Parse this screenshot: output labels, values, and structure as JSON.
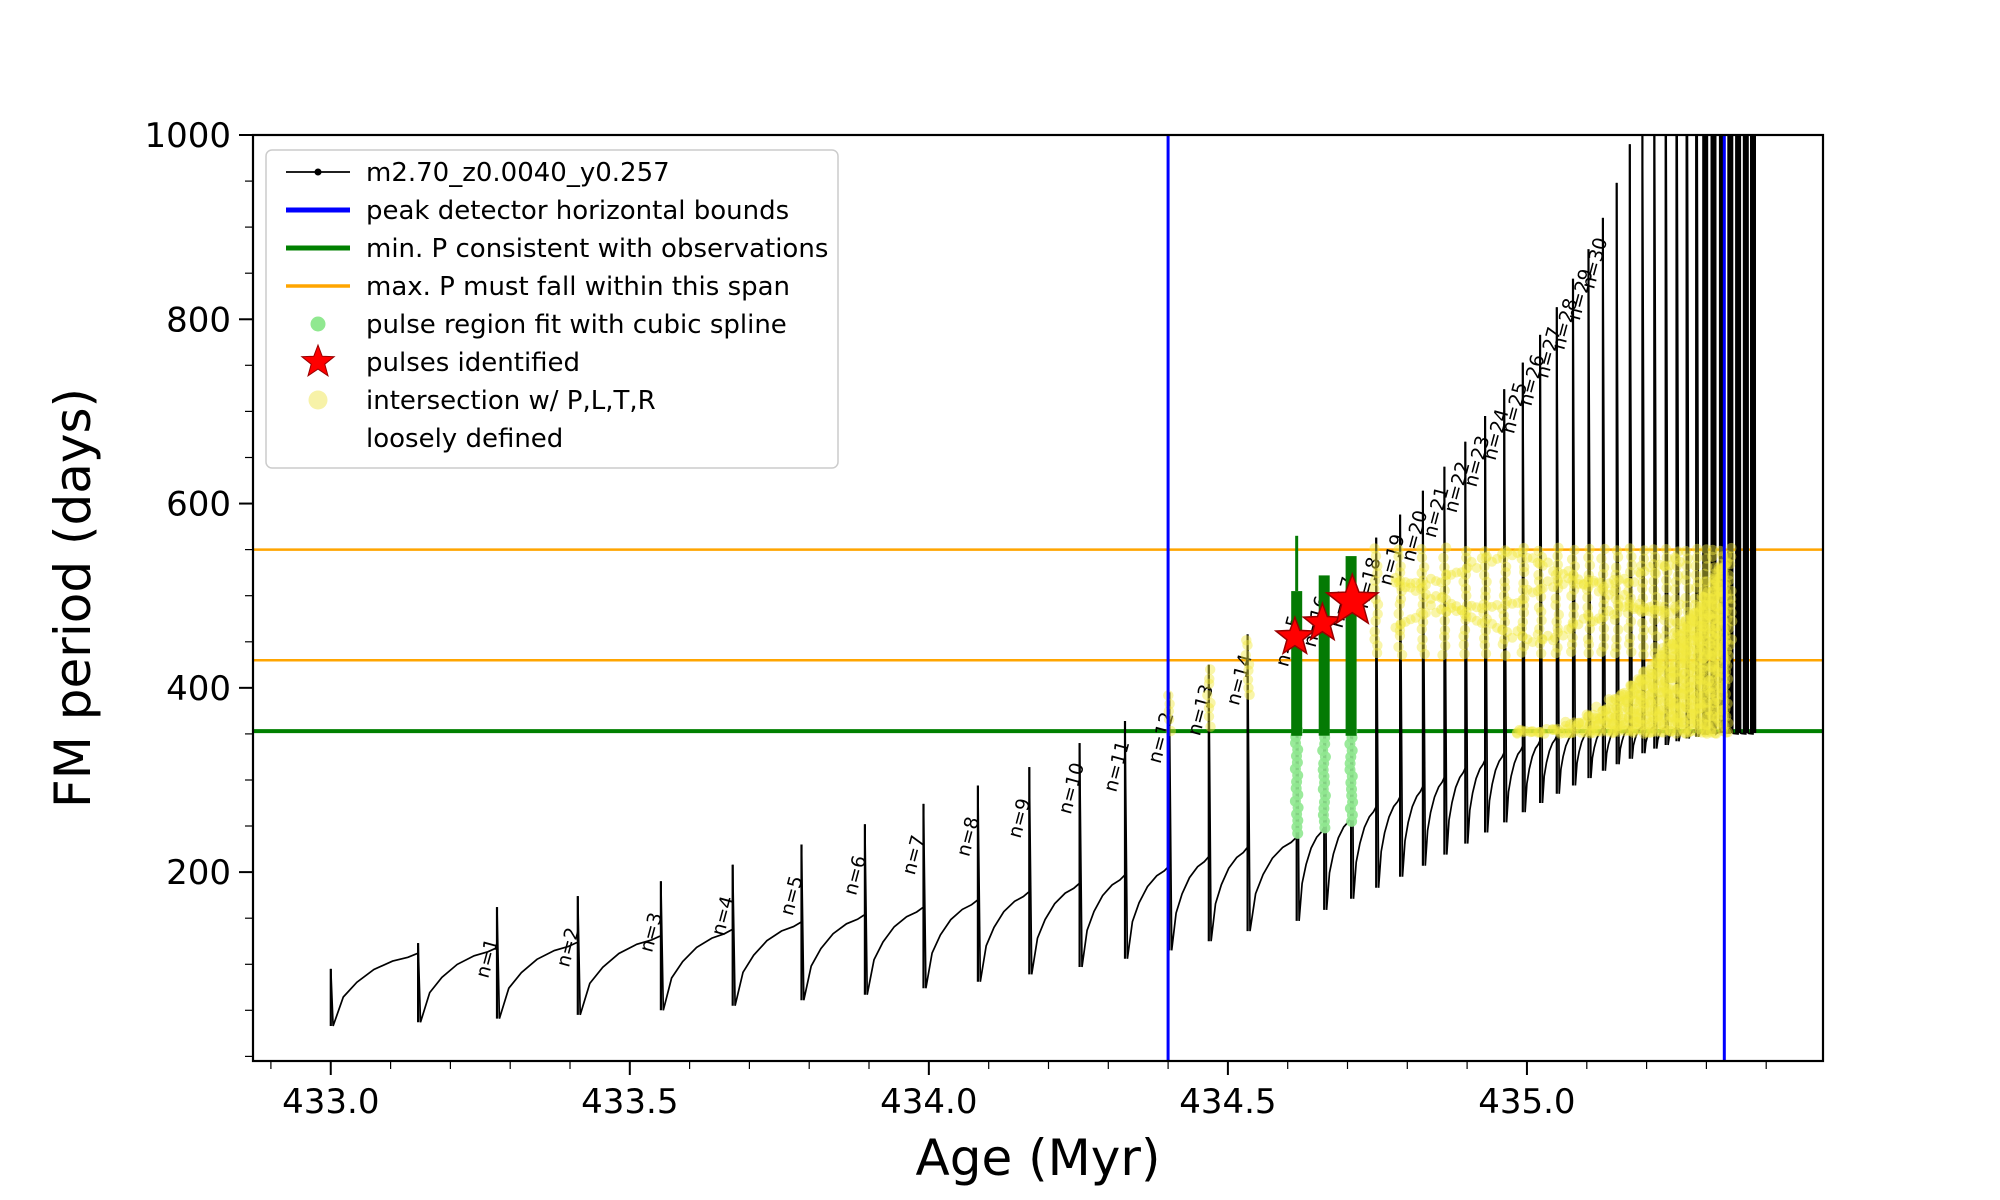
{
  "window": {
    "background": "#ffffff"
  },
  "figure": {
    "xlabel": "Age (Myr)",
    "ylabel": "FM period (days)",
    "x_range": [
      432.87,
      435.495
    ],
    "y_range": [
      -5,
      1000
    ],
    "x_ticks": [
      433.0,
      433.5,
      434.0,
      434.5,
      435.0
    ],
    "x_tick_labels": [
      "433.0",
      "433.5",
      "434.0",
      "434.5",
      "435.0"
    ],
    "y_ticks": [
      200,
      400,
      600,
      800,
      1000
    ],
    "y_tick_labels": [
      "200",
      "400",
      "600",
      "800",
      "1000"
    ],
    "x_minor_step": 0.1,
    "y_minor_step": 50
  },
  "legend": {
    "items": [
      {
        "label": "m2.70_z0.0040_y0.257"
      },
      {
        "label": "peak detector horizontal bounds"
      },
      {
        "label": "min. P consistent with observations"
      },
      {
        "label": "max. P must fall within this span"
      },
      {
        "label": "pulse region fit with cubic spline"
      },
      {
        "label": "pulses identified"
      },
      {
        "lines": [
          "intersection w/ P,L,T,R",
          "loosely defined"
        ]
      }
    ]
  },
  "chart_data": {
    "type": "line",
    "series_name": "m2.70_z0.0040_y0.257",
    "xlabel": "Age (Myr)",
    "ylabel": "FM period (days)",
    "xlim": [
      432.87,
      435.495
    ],
    "ylim": [
      -5,
      1000
    ],
    "peak_detector_bounds_x": [
      434.4,
      435.33
    ],
    "min_P_line_y": 353,
    "max_P_span_y": [
      430,
      550
    ],
    "colors": {
      "series": "#000000",
      "bounds": "#0000ff",
      "min_P": "#008000",
      "max_P": "#ffa500",
      "spline_dots": "#90e890",
      "spline_bar": "#047a04",
      "star": "#ff0000",
      "star_edge": "#990000",
      "intersection": "#f2e93e",
      "intersection_legend": "#f7f2a8"
    },
    "pulses": [
      {
        "n": null,
        "age": 433.0,
        "peak": 95,
        "base": 88,
        "dip": 33
      },
      {
        "n": null,
        "age": 433.146,
        "peak": 123,
        "base": 112,
        "dip": 37
      },
      {
        "n": 1,
        "age": 433.278,
        "peak": 162,
        "base": 118,
        "dip": 41
      },
      {
        "n": 2,
        "age": 433.413,
        "peak": 174,
        "base": 124,
        "dip": 45
      },
      {
        "n": 3,
        "age": 433.552,
        "peak": 190,
        "base": 131,
        "dip": 50
      },
      {
        "n": 4,
        "age": 433.672,
        "peak": 208,
        "base": 138,
        "dip": 55
      },
      {
        "n": 5,
        "age": 433.787,
        "peak": 230,
        "base": 146,
        "dip": 61
      },
      {
        "n": 6,
        "age": 433.893,
        "peak": 252,
        "base": 154,
        "dip": 67
      },
      {
        "n": 7,
        "age": 433.991,
        "peak": 274,
        "base": 162,
        "dip": 74
      },
      {
        "n": 8,
        "age": 434.082,
        "peak": 294,
        "base": 170,
        "dip": 81
      },
      {
        "n": 9,
        "age": 434.168,
        "peak": 314,
        "base": 179,
        "dip": 89
      },
      {
        "n": 10,
        "age": 434.252,
        "peak": 340,
        "base": 188,
        "dip": 97
      },
      {
        "n": 11,
        "age": 434.328,
        "peak": 364,
        "base": 197,
        "dip": 106
      },
      {
        "n": 12,
        "age": 434.402,
        "peak": 395,
        "base": 207,
        "dip": 115
      },
      {
        "n": 13,
        "age": 434.468,
        "peak": 425,
        "base": 217,
        "dip": 125
      },
      {
        "n": 14,
        "age": 434.533,
        "peak": 458,
        "base": 227,
        "dip": 136
      },
      {
        "n": 15,
        "age": 434.615,
        "peak": 500,
        "base": 238,
        "dip": 147
      },
      {
        "n": 16,
        "age": 434.661,
        "peak": 521,
        "base": 249,
        "dip": 159
      },
      {
        "n": 17,
        "age": 434.706,
        "peak": 542,
        "base": 260,
        "dip": 171
      },
      {
        "n": 18,
        "age": 434.748,
        "peak": 563,
        "base": 271,
        "dip": 183
      },
      {
        "n": 19,
        "age": 434.788,
        "peak": 588,
        "base": 282,
        "dip": 195
      },
      {
        "n": 20,
        "age": 434.826,
        "peak": 614,
        "base": 293,
        "dip": 207
      },
      {
        "n": 21,
        "age": 434.862,
        "peak": 640,
        "base": 303,
        "dip": 219
      },
      {
        "n": 22,
        "age": 434.897,
        "peak": 667,
        "base": 313,
        "dip": 231
      },
      {
        "n": 23,
        "age": 434.93,
        "peak": 695,
        "base": 322,
        "dip": 243
      },
      {
        "n": 24,
        "age": 434.962,
        "peak": 724,
        "base": 330,
        "dip": 254
      },
      {
        "n": 25,
        "age": 434.993,
        "peak": 753,
        "base": 337,
        "dip": 265
      },
      {
        "n": 26,
        "age": 435.022,
        "peak": 783,
        "base": 343,
        "dip": 275
      },
      {
        "n": 27,
        "age": 435.05,
        "peak": 813,
        "base": 348,
        "dip": 285
      },
      {
        "n": 28,
        "age": 435.077,
        "peak": 844,
        "base": 352,
        "dip": 294
      },
      {
        "n": 29,
        "age": 435.103,
        "peak": 876,
        "base": 355,
        "dip": 302
      },
      {
        "n": 30,
        "age": 435.127,
        "peak": 910,
        "base": 357,
        "dip": 310
      },
      {
        "n": null,
        "age": 435.15,
        "peak": 948,
        "base": 358,
        "dip": 317
      },
      {
        "n": null,
        "age": 435.172,
        "peak": 990,
        "base": 359,
        "dip": 323
      },
      {
        "n": null,
        "age": 435.193,
        "peak": 1040,
        "base": 359,
        "dip": 329
      },
      {
        "n": null,
        "age": 435.213,
        "peak": 1095,
        "base": 359,
        "dip": 334
      },
      {
        "n": null,
        "age": 435.232,
        "peak": 1160,
        "base": 358,
        "dip": 338
      },
      {
        "n": null,
        "age": 435.25,
        "peak": 1240,
        "base": 357,
        "dip": 342
      },
      {
        "n": null,
        "age": 435.267,
        "peak": 1340,
        "base": 356,
        "dip": 345
      },
      {
        "n": null,
        "age": 435.283,
        "peak": 1470,
        "base": 355,
        "dip": 347
      },
      {
        "n": null,
        "age": 435.298,
        "peak": 1640,
        "base": 354,
        "dip": 349
      },
      {
        "n": null,
        "age": 435.312,
        "peak": 1870,
        "base": 353,
        "dip": 350
      },
      {
        "n": null,
        "age": 435.326,
        "peak": 2100,
        "base": 352,
        "dip": 351
      },
      {
        "n": null,
        "age": 435.34,
        "peak": 2400,
        "base": 351,
        "dip": 351
      },
      {
        "n": null,
        "age": 435.353,
        "peak": 2800,
        "base": 350,
        "dip": 351
      },
      {
        "n": null,
        "age": 435.366,
        "peak": 3200,
        "base": 350,
        "dip": 351
      },
      {
        "n": null,
        "age": 435.378,
        "peak": 3600,
        "base": 350,
        "dip": 351
      }
    ],
    "pulses_identified": [
      {
        "age": 434.612,
        "period": 455,
        "size": 20
      },
      {
        "age": 434.658,
        "period": 470,
        "size": 20
      },
      {
        "age": 434.708,
        "period": 494,
        "size": 27
      }
    ],
    "spline_regions": [
      {
        "age": 434.615,
        "bar_bottom": 348,
        "bar_top": 505,
        "dots_bottom": 242,
        "tip_top": 565
      },
      {
        "age": 434.661,
        "bar_bottom": 348,
        "bar_top": 522,
        "dots_bottom": 248,
        "tip_top": null
      },
      {
        "age": 434.706,
        "bar_bottom": 348,
        "bar_top": 543,
        "dots_bottom": 255,
        "tip_top": null
      }
    ],
    "intersection_region": {
      "strip_x_range": [
        434.4,
        435.34
      ],
      "band_y_range": [
        353,
        550
      ],
      "wedge": {
        "x_start": 434.98,
        "x_end": 435.335,
        "y_base": 353,
        "y_top_max": 550,
        "exponent": 2.2
      },
      "chains": [
        {
          "y0": 470
        },
        {
          "y0": 500
        },
        {
          "y0": 528
        }
      ]
    }
  }
}
